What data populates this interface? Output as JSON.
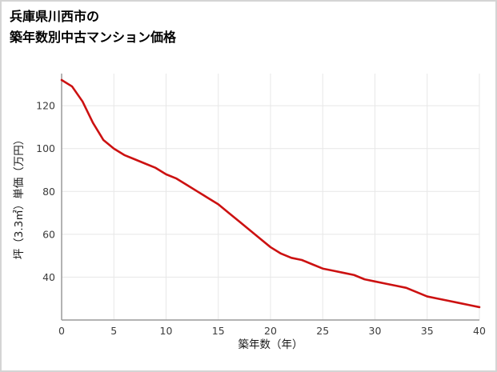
{
  "chart_data": {
    "type": "line",
    "title_lines": [
      "兵庫県川西市の",
      "築年数別中古マンション価格"
    ],
    "xlabel": "築年数（年）",
    "ylabel": "坪（3.3㎡）単価（万円）",
    "x": [
      0,
      1,
      2,
      3,
      4,
      5,
      6,
      7,
      8,
      9,
      10,
      11,
      12,
      13,
      14,
      15,
      16,
      17,
      18,
      19,
      20,
      21,
      22,
      23,
      24,
      25,
      26,
      27,
      28,
      29,
      30,
      31,
      32,
      33,
      34,
      35,
      36,
      37,
      38,
      39,
      40
    ],
    "values": [
      132,
      129,
      122,
      112,
      104,
      100,
      97,
      95,
      93,
      91,
      88,
      86,
      83,
      80,
      77,
      74,
      70,
      66,
      62,
      58,
      54,
      51,
      49,
      48,
      46,
      44,
      43,
      42,
      41,
      39,
      38,
      37,
      36,
      35,
      33,
      31,
      30,
      29,
      28,
      27,
      26
    ],
    "xlim": [
      0,
      40
    ],
    "ylim": [
      20,
      135
    ],
    "xticks": [
      0,
      5,
      10,
      15,
      20,
      25,
      30,
      35,
      40
    ],
    "yticks": [
      40,
      60,
      80,
      100,
      120
    ],
    "grid": true,
    "legend_position": "none",
    "colors": {
      "line": "#cc1111",
      "grid": "#e7e7e7",
      "axis": "#9a9a9a",
      "tick_text": "#3c3c3c"
    }
  }
}
